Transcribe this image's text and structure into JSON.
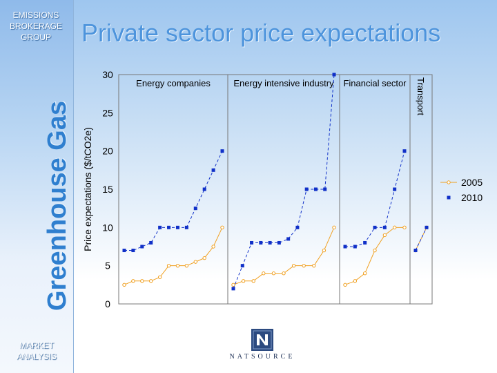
{
  "sidebar": {
    "brand_top": "EMISSIONS BROKERAGE GROUP",
    "brand_vertical": "Greenhouse Gas",
    "brand_bottom": "MARKET ANALYSIS"
  },
  "slide": {
    "title": "Private sector price expectations"
  },
  "logo": {
    "text": "NATSOURCE",
    "mark": "N",
    "colors": {
      "mark_bg": "#2c4a80",
      "mark_fg": "#ffffff"
    }
  },
  "colors": {
    "series_2005": "#f0a020",
    "series_2010": "#1030c8",
    "title": "#4d94dc",
    "brand": "#2f7fcf"
  },
  "chart_data": {
    "type": "line",
    "ylabel": "Price expectations ($/tCO2e)",
    "ylim": [
      0,
      30
    ],
    "yticks": [
      0,
      5,
      10,
      15,
      20,
      25,
      30
    ],
    "legend_position": "right",
    "grid": false,
    "groups": [
      {
        "label": "Energy companies"
      },
      {
        "label": "Energy intensive industry"
      },
      {
        "label": "Financial sector"
      },
      {
        "label": "Transport",
        "vertical": true
      }
    ],
    "series": [
      {
        "name": "2005",
        "marker": "circle",
        "groups": [
          [
            2.5,
            3,
            3,
            3,
            3.5,
            5,
            5,
            5,
            5.5,
            6,
            7.5,
            10
          ],
          [
            2.5,
            3,
            3,
            4,
            4,
            4,
            5,
            5,
            5,
            7,
            10
          ],
          [
            2.5,
            3,
            4,
            7,
            9,
            10,
            10
          ],
          [
            7,
            10
          ]
        ]
      },
      {
        "name": "2010",
        "marker": "square",
        "groups": [
          [
            7,
            7,
            7.5,
            8,
            10,
            10,
            10,
            10,
            12.5,
            15,
            17.5,
            20
          ],
          [
            2,
            5,
            8,
            8,
            8,
            8,
            8.5,
            10,
            15,
            15,
            15,
            30
          ],
          [
            7.5,
            7.5,
            8,
            10,
            10,
            15,
            20
          ],
          [
            7,
            10
          ]
        ]
      }
    ]
  }
}
